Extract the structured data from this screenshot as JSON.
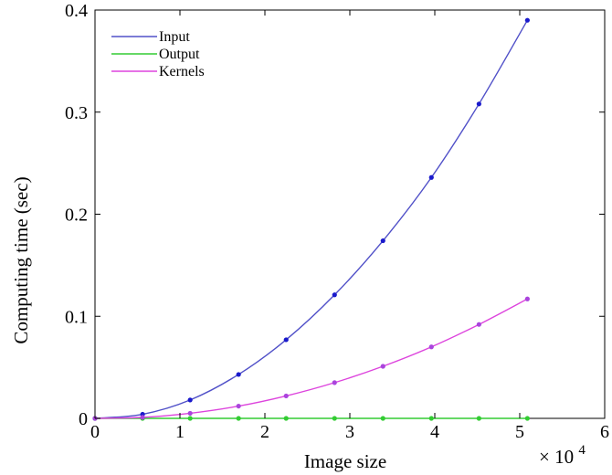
{
  "chart_data": {
    "type": "line",
    "title": "",
    "xlabel": "Image size",
    "ylabel": "Computing time (sec)",
    "x_multiplier_label": "× 10",
    "x_multiplier_exponent": "4",
    "xlim": [
      0,
      6
    ],
    "ylim": [
      0,
      0.4
    ],
    "xticks": [
      0,
      1,
      2,
      3,
      4,
      5,
      6
    ],
    "xtick_labels": [
      "0",
      "1",
      "2",
      "3",
      "4",
      "5",
      "6"
    ],
    "yticks": [
      0,
      0.1,
      0.2,
      0.3,
      0.4
    ],
    "ytick_labels": [
      "0",
      "0.1",
      "0.2",
      "0.3",
      "0.4"
    ],
    "grid": false,
    "legend_position": "top-left",
    "x": [
      0,
      0.56,
      1.12,
      1.69,
      2.25,
      2.82,
      3.39,
      3.96,
      4.52,
      5.09
    ],
    "series": [
      {
        "name": "Input",
        "line_color": "#5050c8",
        "marker_color": "#1a1acc",
        "values": [
          0,
          0.004,
          0.018,
          0.043,
          0.077,
          0.121,
          0.174,
          0.236,
          0.308,
          0.39
        ]
      },
      {
        "name": "Output",
        "line_color": "#33cc33",
        "marker_color": "#33cc33",
        "values": [
          0,
          0,
          0,
          0,
          0,
          0,
          0,
          0,
          0,
          0
        ]
      },
      {
        "name": "Kernels",
        "line_color": "#dd44dd",
        "marker_color": "#aa44dd",
        "values": [
          0,
          0.001,
          0.005,
          0.012,
          0.022,
          0.035,
          0.051,
          0.07,
          0.092,
          0.117
        ]
      }
    ]
  }
}
